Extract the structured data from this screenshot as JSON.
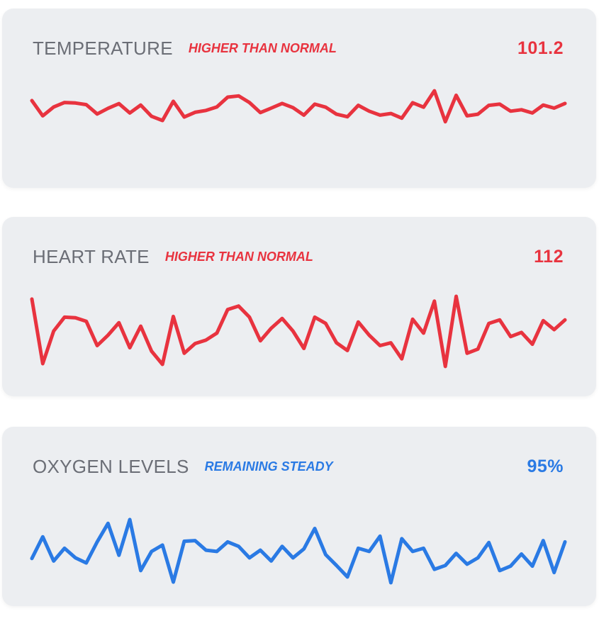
{
  "metrics": [
    {
      "title": "TEMPERATURE",
      "status": "HIGHER THAN NORMAL",
      "value": "101.2",
      "color": "#e8333f",
      "series": [
        0.85,
        0.2,
        0.58,
        0.77,
        0.75,
        0.68,
        0.28,
        0.52,
        0.72,
        0.32,
        0.66,
        0.18,
        0.0,
        0.82,
        0.15,
        0.35,
        0.43,
        0.58,
        1.0,
        1.05,
        0.77,
        0.34,
        0.53,
        0.73,
        0.55,
        0.23,
        0.7,
        0.57,
        0.27,
        0.16,
        0.65,
        0.4,
        0.23,
        0.3,
        0.1,
        0.76,
        0.57,
        1.27,
        -0.05,
        1.08,
        0.2,
        0.27,
        0.65,
        0.7,
        0.4,
        0.46,
        0.32,
        0.66,
        0.53,
        0.73
      ]
    },
    {
      "title": "HEART RATE",
      "status": "HIGHER THAN NORMAL",
      "value": "112",
      "color": "#e8333f",
      "series": [
        0.94,
        0.01,
        0.48,
        0.68,
        0.67,
        0.62,
        0.27,
        0.42,
        0.6,
        0.24,
        0.55,
        0.19,
        0.0,
        0.69,
        0.16,
        0.3,
        0.35,
        0.45,
        0.79,
        0.84,
        0.68,
        0.34,
        0.52,
        0.66,
        0.48,
        0.23,
        0.68,
        0.59,
        0.31,
        0.2,
        0.61,
        0.42,
        0.27,
        0.31,
        0.08,
        0.65,
        0.45,
        0.91,
        -0.03,
        0.98,
        0.16,
        0.22,
        0.59,
        0.64,
        0.4,
        0.46,
        0.29,
        0.63,
        0.5,
        0.64
      ]
    },
    {
      "title": "OXYGEN LEVELS",
      "status": "REMAINING STEADY",
      "value": "95%",
      "color": "#2a7ae4",
      "series": [
        0.38,
        0.72,
        0.34,
        0.54,
        0.39,
        0.31,
        0.64,
        0.93,
        0.43,
        0.99,
        0.19,
        0.49,
        0.59,
        0.01,
        0.65,
        0.66,
        0.51,
        0.49,
        0.64,
        0.57,
        0.39,
        0.51,
        0.34,
        0.57,
        0.39,
        0.53,
        0.85,
        0.44,
        0.27,
        0.09,
        0.54,
        0.49,
        0.73,
        0.0,
        0.69,
        0.49,
        0.54,
        0.21,
        0.27,
        0.46,
        0.29,
        0.39,
        0.63,
        0.19,
        0.26,
        0.45,
        0.26,
        0.66,
        0.16,
        0.64
      ]
    }
  ]
}
